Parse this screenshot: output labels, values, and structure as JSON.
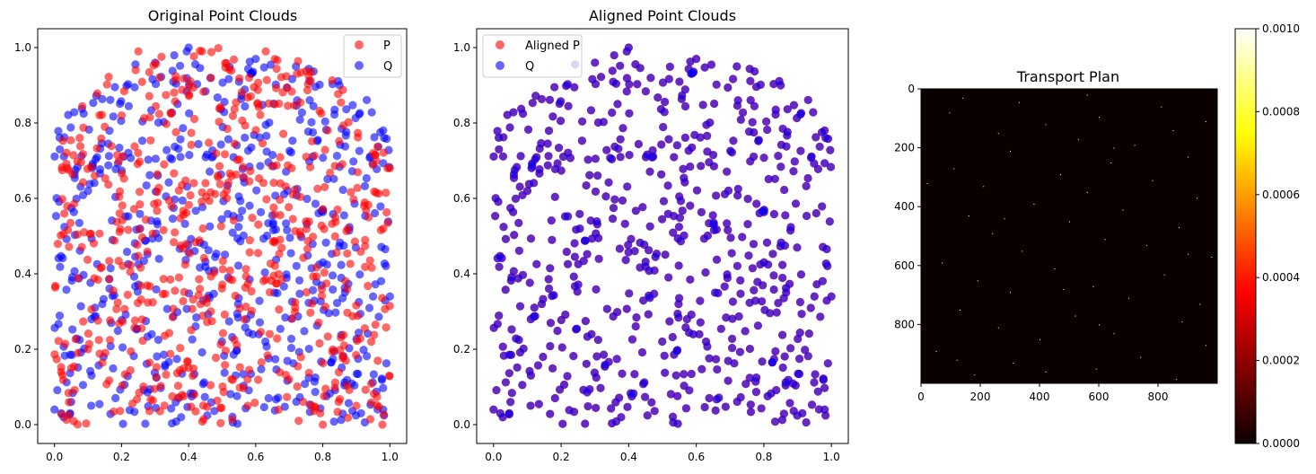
{
  "chart_data": [
    {
      "type": "scatter",
      "title": "Original Point Clouds",
      "xlabel": "",
      "ylabel": "",
      "xlim": [
        -0.05,
        1.05
      ],
      "ylim": [
        -0.05,
        1.05
      ],
      "xticks": [
        "0.0",
        "0.2",
        "0.4",
        "0.6",
        "0.8",
        "1.0"
      ],
      "yticks": [
        "0.0",
        "0.2",
        "0.4",
        "0.6",
        "0.8",
        "1.0"
      ],
      "legend_position": "upper-right",
      "grid": false,
      "series": [
        {
          "name": "P",
          "color": "#ff0000",
          "alpha": 0.6,
          "n_points": 1000,
          "seed": 11,
          "values": [
            [
              0.02,
              0.14
            ],
            [
              0.05,
              0.15
            ],
            [
              0.07,
              0.19
            ],
            [
              0.1,
              0.2
            ],
            [
              0.12,
              0.66
            ],
            [
              0.15,
              0.79
            ],
            [
              0.2,
              0.82
            ],
            [
              0.25,
              0.99
            ],
            [
              0.44,
              0.99
            ],
            [
              0.63,
              0.99
            ],
            [
              0.8,
              0.0
            ],
            [
              0.9,
              0.05
            ],
            [
              0.95,
              0.72
            ],
            [
              1.0,
              0.68
            ]
          ]
        },
        {
          "name": "Q",
          "color": "#0000ff",
          "alpha": 0.6,
          "n_points": 1000,
          "seed": 12,
          "values": [
            [
              0.0,
              0.04
            ],
            [
              0.02,
              0.03
            ],
            [
              0.05,
              0.06
            ],
            [
              0.1,
              0.62
            ],
            [
              0.3,
              0.96
            ],
            [
              0.4,
              1.0
            ],
            [
              0.6,
              0.97
            ],
            [
              0.72,
              0.95
            ],
            [
              0.85,
              0.9
            ],
            [
              0.98,
              0.78
            ],
            [
              1.0,
              0.34
            ],
            [
              0.98,
              0.04
            ]
          ]
        }
      ]
    },
    {
      "type": "scatter",
      "title": "Aligned Point Clouds",
      "xlabel": "",
      "ylabel": "",
      "xlim": [
        -0.05,
        1.05
      ],
      "ylim": [
        -0.05,
        1.05
      ],
      "xticks": [
        "0.0",
        "0.2",
        "0.4",
        "0.6",
        "0.8",
        "1.0"
      ],
      "yticks": [
        "0.0",
        "0.2",
        "0.4",
        "0.6",
        "0.8",
        "1.0"
      ],
      "legend_position": "upper-left",
      "grid": false,
      "series": [
        {
          "name": "Aligned P",
          "color": "#ff0000",
          "alpha": 0.6,
          "n_points": 1000,
          "seed": 12,
          "values": []
        },
        {
          "name": "Q",
          "color": "#0000ff",
          "alpha": 0.6,
          "n_points": 1000,
          "seed": 12,
          "values": []
        }
      ]
    },
    {
      "type": "heatmap",
      "title": "Transport Plan",
      "xlabel": "",
      "ylabel": "",
      "xlim": [
        0,
        1000
      ],
      "ylim": [
        1000,
        0
      ],
      "xticks": [
        "0",
        "200",
        "400",
        "600",
        "800"
      ],
      "yticks": [
        "0",
        "200",
        "400",
        "600",
        "800"
      ],
      "colormap": "hot",
      "background_value": 0.0,
      "vmin": 0.0,
      "vmax": 0.001,
      "colorbar_ticks": [
        "0.0000",
        "0.0002",
        "0.0004",
        "0.0006",
        "0.0008",
        "0.0010"
      ],
      "highlighted_cells": [
        [
          30,
          140
        ],
        [
          45,
          330
        ],
        [
          60,
          810
        ],
        [
          80,
          95
        ],
        [
          95,
          600
        ],
        [
          120,
          420
        ],
        [
          140,
          850
        ],
        [
          150,
          260
        ],
        [
          170,
          530
        ],
        [
          190,
          720
        ],
        [
          210,
          300
        ],
        [
          230,
          900
        ],
        [
          250,
          640
        ],
        [
          270,
          110
        ],
        [
          290,
          470
        ],
        [
          310,
          780
        ],
        [
          330,
          210
        ],
        [
          350,
          560
        ],
        [
          370,
          930
        ],
        [
          390,
          380
        ],
        [
          410,
          680
        ],
        [
          430,
          160
        ],
        [
          450,
          500
        ],
        [
          470,
          870
        ],
        [
          490,
          240
        ],
        [
          510,
          620
        ],
        [
          530,
          760
        ],
        [
          550,
          340
        ],
        [
          570,
          980
        ],
        [
          590,
          70
        ],
        [
          610,
          450
        ],
        [
          630,
          820
        ],
        [
          650,
          190
        ],
        [
          670,
          580
        ],
        [
          690,
          300
        ],
        [
          710,
          700
        ],
        [
          730,
          940
        ],
        [
          750,
          130
        ],
        [
          770,
          520
        ],
        [
          790,
          880
        ],
        [
          810,
          260
        ],
        [
          830,
          650
        ],
        [
          850,
          400
        ],
        [
          870,
          960
        ],
        [
          890,
          50
        ],
        [
          910,
          740
        ],
        [
          930,
          310
        ],
        [
          950,
          590
        ],
        [
          970,
          180
        ],
        [
          985,
          860
        ],
        [
          20,
          560
        ],
        [
          110,
          960
        ],
        [
          200,
          650
        ],
        [
          320,
          20
        ],
        [
          440,
          280
        ],
        [
          560,
          900
        ],
        [
          680,
          480
        ],
        [
          800,
          600
        ],
        [
          920,
          120
        ],
        [
          960,
          420
        ]
      ]
    }
  ]
}
